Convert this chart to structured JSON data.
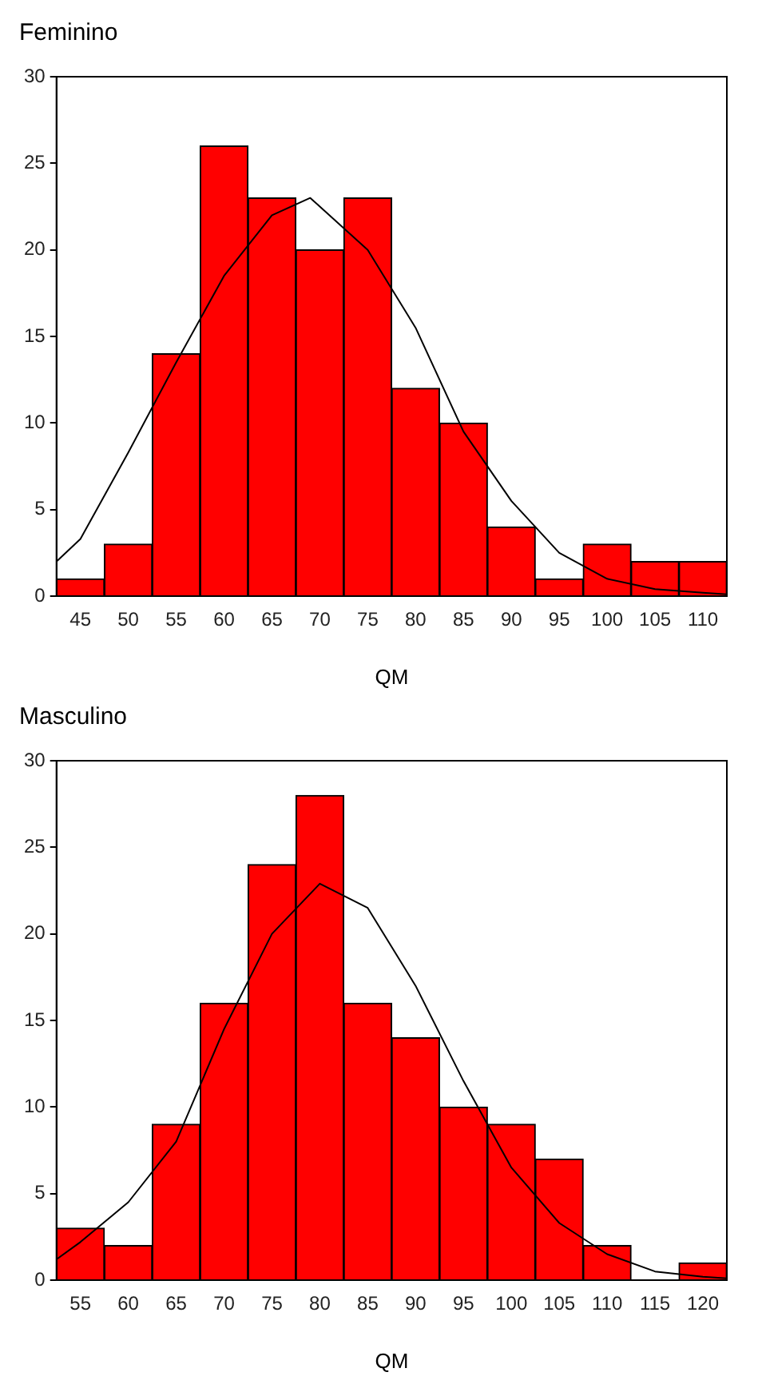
{
  "chart_data": [
    {
      "type": "histogram",
      "title": "Feminino",
      "xlabel": "QM",
      "color": "#ff0000",
      "bins": [
        42.5,
        47.5,
        52.5,
        57.5,
        62.5,
        67.5,
        72.5,
        77.5,
        82.5,
        87.5,
        92.5,
        97.5,
        102.5,
        107.5,
        112.5
      ],
      "values": [
        1,
        3,
        14,
        26,
        23,
        20,
        23,
        12,
        10,
        4,
        1,
        3,
        2,
        2
      ],
      "xlim": [
        42.5,
        112.5
      ],
      "xticks": [
        45,
        50,
        55,
        60,
        65,
        70,
        75,
        80,
        85,
        90,
        95,
        100,
        105,
        110
      ],
      "ylim": [
        0,
        30
      ],
      "yticks": [
        0,
        5,
        10,
        15,
        20,
        25,
        30
      ],
      "grid": false,
      "series": [
        {
          "type": "line",
          "color": "#000000",
          "x": [
            42.5,
            45,
            50,
            55,
            60,
            65,
            69,
            75,
            80,
            85,
            90,
            95,
            100,
            105,
            110,
            112.5
          ],
          "values": [
            2.0,
            3.3,
            8.3,
            13.5,
            18.5,
            22,
            23,
            20,
            15.5,
            9.5,
            5.5,
            2.5,
            1.0,
            0.4,
            0.2,
            0.1
          ]
        }
      ]
    },
    {
      "type": "histogram",
      "title": "Masculino",
      "xlabel": "QM",
      "color": "#ff0000",
      "bins": [
        52.5,
        57.5,
        62.5,
        67.5,
        72.5,
        77.5,
        82.5,
        87.5,
        92.5,
        97.5,
        102.5,
        107.5,
        112.5,
        117.5,
        122.5
      ],
      "values": [
        3,
        2,
        9,
        16,
        24,
        28,
        16,
        14,
        10,
        9,
        7,
        2,
        0,
        1
      ],
      "xlim": [
        52.5,
        122.5
      ],
      "xticks": [
        55,
        60,
        65,
        70,
        75,
        80,
        85,
        90,
        95,
        100,
        105,
        110,
        115,
        120
      ],
      "ylim": [
        0,
        30
      ],
      "yticks": [
        0,
        5,
        10,
        15,
        20,
        25,
        30
      ],
      "grid": false,
      "series": [
        {
          "type": "line",
          "color": "#000000",
          "x": [
            52.5,
            55,
            60,
            65,
            70,
            75,
            80,
            85,
            90,
            95,
            100,
            105,
            110,
            115,
            120,
            122.5
          ],
          "values": [
            1.2,
            2.2,
            4.5,
            8,
            14.5,
            20,
            22.9,
            21.5,
            17,
            11.5,
            6.5,
            3.3,
            1.5,
            0.5,
            0.2,
            0.1
          ]
        }
      ]
    }
  ]
}
